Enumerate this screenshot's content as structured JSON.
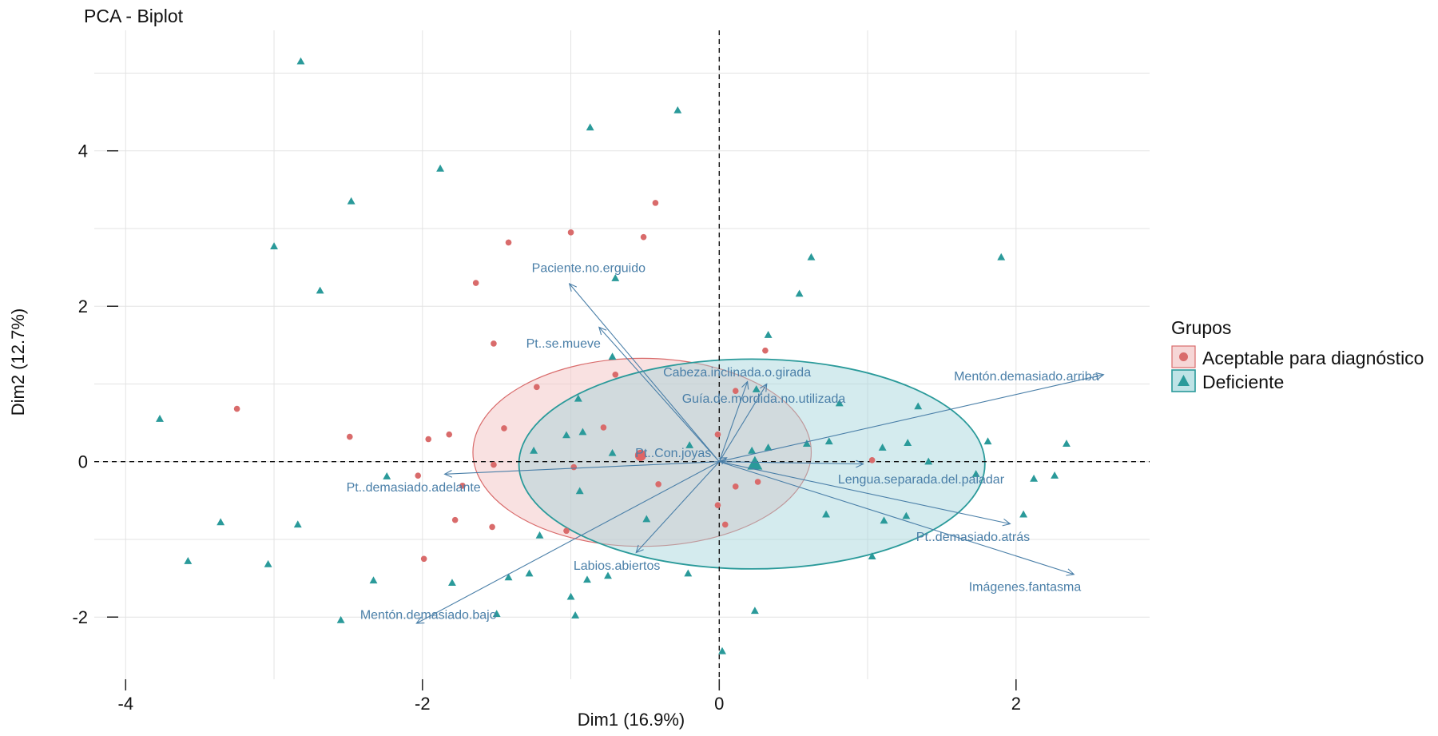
{
  "chart_data": {
    "type": "scatter",
    "title": "PCA - Biplot",
    "xlabel": "Dim1 (16.9%)",
    "ylabel": "Dim2 (12.7%)",
    "xlim": [
      -4.05,
      2.9
    ],
    "ylim": [
      -2.8,
      5.55
    ],
    "x_ticks": [
      -4,
      -2,
      0,
      2
    ],
    "y_ticks": [
      -2,
      0,
      2,
      4
    ],
    "x_tick_labels": [
      "-4",
      "-2",
      "0",
      "2"
    ],
    "y_tick_labels": [
      "-2",
      "0",
      "2",
      "4"
    ],
    "grid": true,
    "reference_lines": {
      "x": 0,
      "y": 0,
      "style": "dashed"
    },
    "legend": {
      "title": "Grupos",
      "placement": "right",
      "entries": [
        {
          "label": "Aceptable para diagnóstico",
          "shape": "circle",
          "color": "#d96b6b",
          "fill": "#f6d6d6"
        },
        {
          "label": "Deficiente",
          "shape": "triangle",
          "color": "#2a9a9a",
          "fill": "#bfe3e6"
        }
      ]
    },
    "colors": {
      "aceptable": "#d96b6b",
      "deficiente": "#2a9a9a",
      "arrow": "#4a7fa8",
      "grid": "#e3e3e3"
    },
    "series": [
      {
        "name": "Aceptable para diagnóstico",
        "shape": "circle",
        "points": [
          [
            -0.43,
            3.33
          ],
          [
            -1.0,
            2.95
          ],
          [
            -0.51,
            2.89
          ],
          [
            -1.42,
            2.82
          ],
          [
            -1.64,
            2.3
          ],
          [
            -1.52,
            1.52
          ],
          [
            0.31,
            1.43
          ],
          [
            -3.25,
            0.68
          ],
          [
            -1.23,
            0.96
          ],
          [
            -0.7,
            1.12
          ],
          [
            -1.45,
            0.43
          ],
          [
            -0.78,
            0.44
          ],
          [
            -1.82,
            0.35
          ],
          [
            -1.96,
            0.29
          ],
          [
            -2.49,
            0.32
          ],
          [
            -1.52,
            -0.04
          ],
          [
            -2.03,
            -0.18
          ],
          [
            -1.73,
            -0.31
          ],
          [
            -0.98,
            -0.07
          ],
          [
            -0.41,
            -0.29
          ],
          [
            0.11,
            0.91
          ],
          [
            -0.01,
            0.35
          ],
          [
            0.11,
            -0.32
          ],
          [
            0.26,
            -0.26
          ],
          [
            -0.01,
            -0.56
          ],
          [
            0.04,
            -0.81
          ],
          [
            1.03,
            0.02
          ],
          [
            -1.78,
            -0.75
          ],
          [
            -1.53,
            -0.84
          ],
          [
            -1.99,
            -1.25
          ],
          [
            -1.03,
            -0.89
          ]
        ],
        "mean": [
          -0.53,
          0.08
        ],
        "ellipse": {
          "center": [
            -0.52,
            0.12
          ],
          "rx": 1.14,
          "ry": 1.21
        }
      },
      {
        "name": "Deficiente",
        "shape": "triangle",
        "points": [
          [
            -2.82,
            5.15
          ],
          [
            -0.28,
            4.52
          ],
          [
            -0.87,
            4.3
          ],
          [
            -1.88,
            3.77
          ],
          [
            -2.48,
            3.35
          ],
          [
            -3.0,
            2.77
          ],
          [
            1.9,
            2.63
          ],
          [
            0.62,
            2.63
          ],
          [
            -2.69,
            2.2
          ],
          [
            0.54,
            2.16
          ],
          [
            -0.7,
            2.36
          ],
          [
            0.33,
            1.63
          ],
          [
            -0.72,
            1.35
          ],
          [
            1.34,
            0.71
          ],
          [
            0.81,
            0.75
          ],
          [
            -3.77,
            0.55
          ],
          [
            -0.95,
            0.81
          ],
          [
            0.25,
            0.93
          ],
          [
            -0.92,
            0.38
          ],
          [
            -1.03,
            0.34
          ],
          [
            -1.25,
            0.14
          ],
          [
            -0.72,
            0.11
          ],
          [
            -0.2,
            0.21
          ],
          [
            0.22,
            0.14
          ],
          [
            0.33,
            0.18
          ],
          [
            0.59,
            0.23
          ],
          [
            0.74,
            0.26
          ],
          [
            1.1,
            0.18
          ],
          [
            1.27,
            0.24
          ],
          [
            1.81,
            0.26
          ],
          [
            2.34,
            0.23
          ],
          [
            1.73,
            -0.16
          ],
          [
            2.12,
            -0.22
          ],
          [
            2.26,
            -0.18
          ],
          [
            1.41,
            0.0
          ],
          [
            -2.24,
            -0.19
          ],
          [
            -0.94,
            -0.38
          ],
          [
            -3.36,
            -0.78
          ],
          [
            -2.84,
            -0.81
          ],
          [
            -3.58,
            -1.28
          ],
          [
            -3.04,
            -1.32
          ],
          [
            0.72,
            -0.68
          ],
          [
            1.11,
            -0.76
          ],
          [
            1.26,
            -0.7
          ],
          [
            2.05,
            -0.68
          ],
          [
            1.03,
            -1.22
          ],
          [
            -0.49,
            -0.74
          ],
          [
            -1.21,
            -0.95
          ],
          [
            -2.33,
            -1.53
          ],
          [
            -1.8,
            -1.56
          ],
          [
            -1.42,
            -1.49
          ],
          [
            -1.28,
            -1.44
          ],
          [
            -0.89,
            -1.52
          ],
          [
            -0.75,
            -1.47
          ],
          [
            -0.21,
            -1.44
          ],
          [
            -1.0,
            -1.74
          ],
          [
            -0.97,
            -1.98
          ],
          [
            0.24,
            -1.92
          ],
          [
            -1.5,
            -1.96
          ],
          [
            -2.55,
            -2.04
          ],
          [
            0.02,
            -2.44
          ]
        ],
        "mean": [
          0.24,
          -0.03
        ],
        "ellipse": {
          "center": [
            0.22,
            -0.03
          ],
          "rx": 1.57,
          "ry": 1.35
        }
      }
    ],
    "variables": [
      {
        "name": "Paciente.no.erguido",
        "end": [
          -1.01,
          2.29
        ],
        "label_at": [
          -0.88,
          2.5
        ]
      },
      {
        "name": "Pt..se.mueve",
        "end": [
          -0.81,
          1.73
        ],
        "label_at": [
          -1.05,
          1.53
        ]
      },
      {
        "name": "Cabeza.inclinada.o.girada",
        "end": [
          0.19,
          1.03
        ],
        "label_at": [
          0.12,
          1.16
        ]
      },
      {
        "name": "Guía.de.mordida.no.utilizada",
        "end": [
          0.32,
          1.0
        ],
        "label_at": [
          0.3,
          0.82
        ]
      },
      {
        "name": "Mentón.demasiado.arriba",
        "end": [
          2.59,
          1.12
        ],
        "label_at": [
          2.07,
          1.11
        ]
      },
      {
        "name": "Pt..Con.joyas",
        "end": [
          0.05,
          0.05
        ],
        "label_at": [
          -0.31,
          0.12
        ]
      },
      {
        "name": "Pt..demasiado.adelante",
        "end": [
          -1.85,
          -0.16
        ],
        "label_at": [
          -2.06,
          -0.32
        ]
      },
      {
        "name": "Lengua.separada.del.paladar",
        "end": [
          0.97,
          -0.03
        ],
        "label_at": [
          1.36,
          -0.22
        ]
      },
      {
        "name": "Pt..demasiado.atrás",
        "end": [
          1.96,
          -0.8
        ],
        "label_at": [
          1.71,
          -0.96
        ]
      },
      {
        "name": "Imágenes.fantasma",
        "end": [
          2.39,
          -1.45
        ],
        "label_at": [
          2.06,
          -1.6
        ]
      },
      {
        "name": "Labios.abiertos",
        "end": [
          -0.56,
          -1.17
        ],
        "label_at": [
          -0.69,
          -1.33
        ]
      },
      {
        "name": "Mentón.demasiado.bajo",
        "end": [
          -2.04,
          -2.08
        ],
        "label_at": [
          -1.96,
          -1.96
        ]
      }
    ]
  }
}
